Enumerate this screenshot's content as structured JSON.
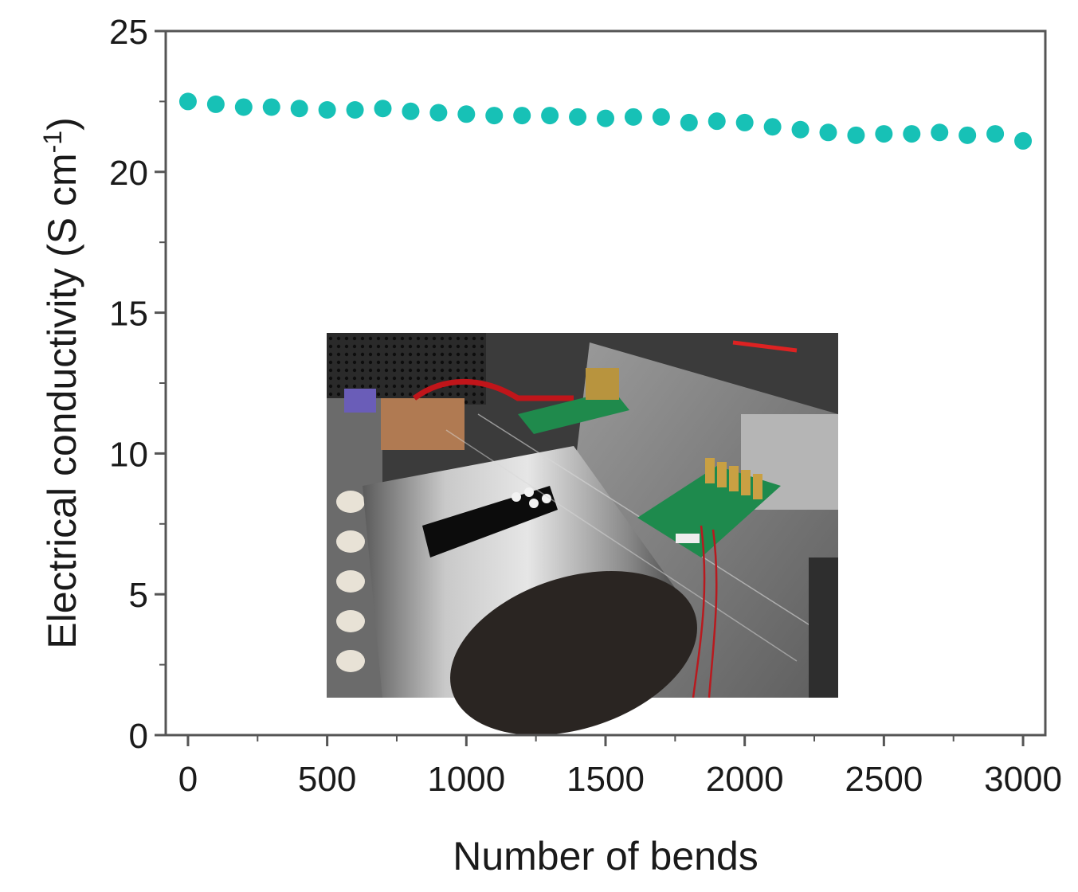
{
  "chart_data": {
    "type": "scatter",
    "title": "",
    "xlabel": "Number of bends",
    "ylabel_main": "Electrical conductivity (S cm",
    "ylabel_sup": "-1",
    "ylabel_close": ")",
    "xlim": [
      -80,
      3080
    ],
    "ylim": [
      0,
      25
    ],
    "x_ticks": [
      0,
      500,
      1000,
      1500,
      2000,
      2500,
      3000
    ],
    "x_tick_labels": [
      "0",
      "500",
      "1000",
      "1500",
      "2000",
      "2500",
      "3000"
    ],
    "x_minor_ticks": [
      250,
      750,
      1250,
      1750,
      2250,
      2750
    ],
    "y_ticks": [
      0,
      5,
      10,
      15,
      20,
      25
    ],
    "y_tick_labels": [
      "0",
      "5",
      "10",
      "15",
      "20",
      "25"
    ],
    "y_minor_ticks": [
      2.5,
      7.5,
      12.5,
      17.5,
      22.5
    ],
    "grid": false,
    "marker_color": "#17c1b6",
    "series": [
      {
        "x": [
          0,
          100,
          200,
          300,
          400,
          500,
          600,
          700,
          800,
          900,
          1000,
          1100,
          1200,
          1300,
          1400,
          1500,
          1600,
          1700,
          1800,
          1900,
          2000,
          2100,
          2200,
          2300,
          2400,
          2500,
          2600,
          2700,
          2800,
          2900,
          3000
        ],
        "y": [
          22.5,
          22.4,
          22.3,
          22.3,
          22.25,
          22.2,
          22.2,
          22.25,
          22.15,
          22.1,
          22.05,
          22.0,
          22.0,
          22.0,
          21.95,
          21.9,
          21.95,
          21.95,
          21.75,
          21.8,
          21.75,
          21.6,
          21.5,
          21.4,
          21.3,
          21.35,
          21.35,
          21.4,
          21.3,
          21.35,
          21.1
        ]
      }
    ],
    "inset_photo": {
      "description_icon": "bending-test-rig-photo-icon"
    }
  }
}
